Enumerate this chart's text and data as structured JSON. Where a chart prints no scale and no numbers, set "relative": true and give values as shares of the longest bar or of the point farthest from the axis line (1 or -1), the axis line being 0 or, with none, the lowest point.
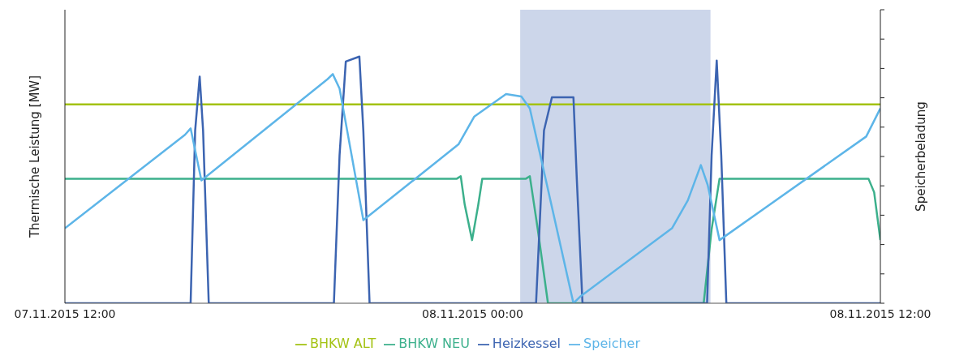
{
  "chart_data": {
    "type": "line",
    "relative": true,
    "ylabel": "Thermische Leistung [MW]",
    "y2label": "Speicherbeladung",
    "xlim": [
      "2015-11-07T12:00",
      "2015-11-08T12:00"
    ],
    "xticks": [
      {
        "value": "2015-11-07T12:00",
        "label": "07.11.2015 12:00"
      },
      {
        "value": "2015-11-08T00:00",
        "label": "08.11.2015 00:00"
      },
      {
        "value": "2015-11-08T12:00",
        "label": "08.11.2015 12:00"
      }
    ],
    "legend": "bottom",
    "marker": "none",
    "line_style": "solid",
    "bands": [
      {
        "axis": "x",
        "from": "2015-11-08T01:24",
        "to": "2015-11-08T07:00",
        "color": "#ccd6ea"
      }
    ],
    "series": [
      {
        "name": "BHKW ALT",
        "color": "#a3c212",
        "x": [
          "2015-11-07T12:00",
          "2015-11-08T12:00"
        ],
        "values": [
          0.806,
          0.806
        ]
      },
      {
        "name": "BHKW NEU",
        "color": "#3cb08c",
        "x": [
          "2015-11-07T12:00",
          "2015-11-07T23:32",
          "2015-11-07T23:39",
          "2015-11-07T23:46",
          "2015-11-07T23:59",
          "2015-11-08T00:10",
          "2015-11-08T00:17",
          "2015-11-08T01:34",
          "2015-11-08T01:41",
          "2015-11-08T01:55",
          "2015-11-08T02:13",
          "2015-11-08T06:48",
          "2015-11-08T07:02",
          "2015-11-08T07:16",
          "2015-11-08T11:39",
          "2015-11-08T11:49",
          "2015-11-08T12:00"
        ],
        "values": [
          0.505,
          0.505,
          0.515,
          0.4,
          0.256,
          0.4,
          0.505,
          0.505,
          0.515,
          0.3,
          0,
          0,
          0.3,
          0.505,
          0.505,
          0.45,
          0.256
        ]
      },
      {
        "name": "Heizkessel",
        "color": "#3c64b1",
        "x": [
          "2015-11-07T12:00",
          "2015-11-07T15:42",
          "2015-11-07T15:50",
          "2015-11-07T15:58",
          "2015-11-07T16:04",
          "2015-11-07T16:14",
          "2015-11-07T19:55",
          "2015-11-07T20:05",
          "2015-11-07T20:16",
          "2015-11-07T20:40",
          "2015-11-07T20:47",
          "2015-11-07T20:58",
          "2015-11-08T01:52",
          "2015-11-08T02:06",
          "2015-11-08T02:20",
          "2015-11-08T02:58",
          "2015-11-08T03:04",
          "2015-11-08T03:14",
          "2015-11-08T06:54",
          "2015-11-08T07:02",
          "2015-11-08T07:11",
          "2015-11-08T07:19",
          "2015-11-08T07:28",
          "2015-11-08T12:00"
        ],
        "values": [
          0,
          0,
          0.7,
          0.919,
          0.7,
          0,
          0,
          0.6,
          0.98,
          1,
          0.7,
          0,
          0,
          0.7,
          0.835,
          0.835,
          0.5,
          0,
          0,
          0.6,
          0.984,
          0.6,
          0,
          0
        ]
      },
      {
        "name": "Speicher",
        "color": "#5db5e8",
        "axis": "y2",
        "x": [
          "2015-11-07T12:00",
          "2015-11-07T15:32",
          "2015-11-07T15:42",
          "2015-11-07T16:01",
          "2015-11-07T19:44",
          "2015-11-07T19:53",
          "2015-11-07T20:05",
          "2015-11-07T20:47",
          "2015-11-07T23:35",
          "2015-11-08T00:03",
          "2015-11-08T00:59",
          "2015-11-08T01:26",
          "2015-11-08T01:41",
          "2015-11-08T02:58",
          "2015-11-08T03:11",
          "2015-11-08T05:52",
          "2015-11-08T06:20",
          "2015-11-08T06:43",
          "2015-11-08T06:55",
          "2015-11-08T07:16",
          "2015-11-08T11:35",
          "2015-11-08T12:00"
        ],
        "values": [
          0.304,
          0.683,
          0.709,
          0.498,
          0.909,
          0.929,
          0.87,
          0.337,
          0.644,
          0.757,
          0.848,
          0.838,
          0.79,
          0,
          0.029,
          0.304,
          0.417,
          0.56,
          0.48,
          0.256,
          0.676,
          0.79
        ]
      }
    ]
  }
}
